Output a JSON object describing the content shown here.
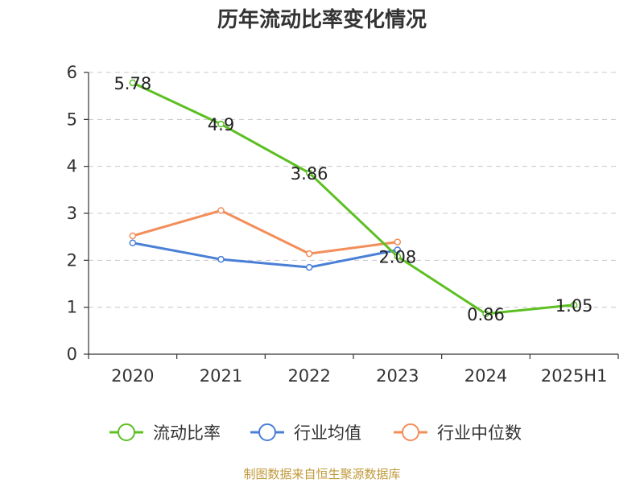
{
  "chart_data": {
    "type": "line",
    "title": "历年流动比率变化情况",
    "categories": [
      "2020",
      "2021",
      "2022",
      "2023",
      "2024",
      "2025H1"
    ],
    "ylim": [
      0,
      6
    ],
    "yticks": [
      0,
      1,
      2,
      3,
      4,
      5,
      6
    ],
    "grid": true,
    "legend_position": "bottom",
    "series": [
      {
        "name": "流动比率",
        "color": "#5cbf22",
        "values": [
          5.78,
          4.9,
          3.86,
          2.08,
          0.86,
          1.05
        ],
        "show_labels": true
      },
      {
        "name": "行业均值",
        "color": "#4a7fd6",
        "values": [
          2.37,
          2.02,
          1.85,
          2.22,
          null,
          null
        ],
        "show_labels": false
      },
      {
        "name": "行业中位数",
        "color": "#f38e5a",
        "values": [
          2.52,
          3.06,
          2.14,
          2.39,
          null,
          null
        ],
        "show_labels": false
      }
    ]
  },
  "footer": {
    "source": "制图数据来自恒生聚源数据库"
  }
}
